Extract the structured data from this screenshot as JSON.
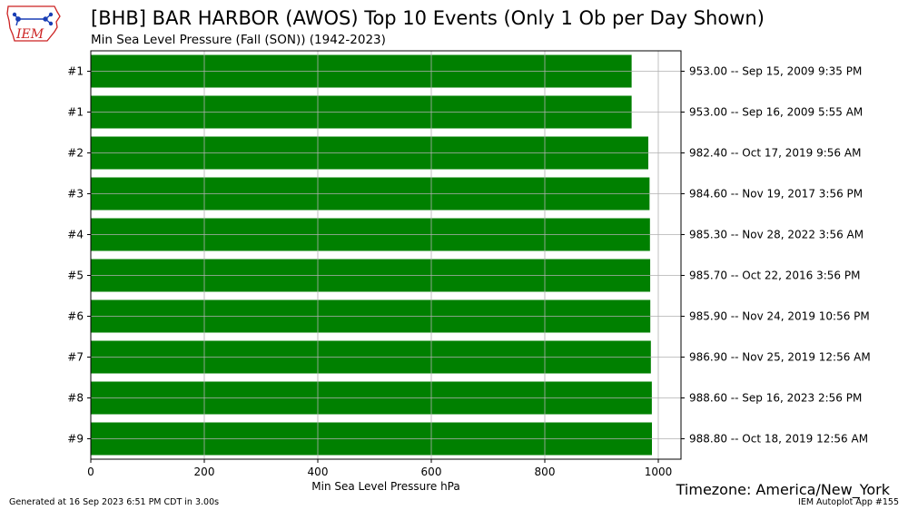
{
  "header": {
    "title": "[BHB] BAR HARBOR (AWOS) Top 10 Events (Only 1 Ob per Day Shown)",
    "subtitle": "Min Sea Level Pressure  (Fall (SON)) (1942-2023)",
    "logo_text": "IEM"
  },
  "footer": {
    "generated": "Generated at 16 Sep 2023 6:51 PM CDT in 3.00s",
    "app": "IEM Autoplot App #155",
    "timezone": "Timezone: America/New_York"
  },
  "colors": {
    "bar": "#008000",
    "grid": "#b0b0b0",
    "logo_red": "#cc2222",
    "logo_blue": "#1a3fb5"
  },
  "chart_data": {
    "type": "bar",
    "orientation": "horizontal",
    "xlabel": "Min Sea Level Pressure hPa",
    "xlim": [
      0,
      1040
    ],
    "xticks": [
      0,
      200,
      400,
      600,
      800,
      1000
    ],
    "grid": true,
    "ranks": [
      "#1",
      "#1",
      "#2",
      "#3",
      "#4",
      "#5",
      "#6",
      "#7",
      "#8",
      "#9"
    ],
    "values": [
      953.0,
      953.0,
      982.4,
      984.6,
      985.3,
      985.7,
      985.9,
      986.9,
      988.6,
      988.8
    ],
    "value_labels": [
      "953.00 -- Sep 15, 2009 9:35 PM",
      "953.00 -- Sep 16, 2009 5:55 AM",
      "982.40 -- Oct 17, 2019 9:56 AM",
      "984.60 -- Nov 19, 2017 3:56 PM",
      "985.30 -- Nov 28, 2022 3:56 AM",
      "985.70 -- Oct 22, 2016 3:56 PM",
      "985.90 -- Nov 24, 2019 10:56 PM",
      "986.90 -- Nov 25, 2019 12:56 AM",
      "988.60 -- Sep 16, 2023 2:56 PM",
      "988.80 -- Oct 18, 2019 12:56 AM"
    ]
  }
}
